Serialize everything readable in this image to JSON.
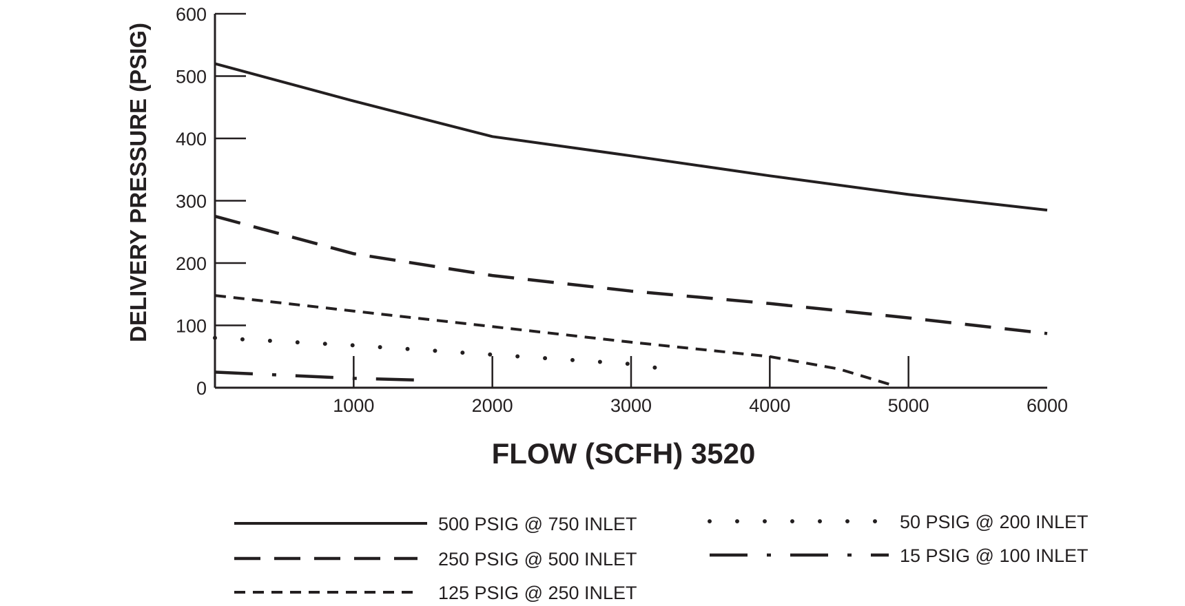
{
  "chart_data": {
    "type": "line",
    "title": "",
    "xlabel": "FLOW (SCFH) 3520",
    "ylabel": "DELIVERY PRESSURE (PSIG)",
    "xlim": [
      0,
      6000
    ],
    "ylim": [
      0,
      600
    ],
    "x_ticks": [
      1000,
      2000,
      3000,
      4000,
      5000,
      6000
    ],
    "y_ticks": [
      0,
      100,
      200,
      300,
      400,
      500,
      600
    ],
    "grid": false,
    "legend_position": "bottom",
    "line_color": "#231f20",
    "series": [
      {
        "name": "500 PSIG @ 750 INLET",
        "style": "solid",
        "x": [
          0,
          1000,
          2000,
          3000,
          4000,
          5000,
          6000
        ],
        "y": [
          520,
          460,
          403,
          372,
          340,
          310,
          285
        ]
      },
      {
        "name": "250 PSIG @ 500 INLET",
        "style": "long-dash",
        "x": [
          0,
          1000,
          2000,
          3000,
          4000,
          5000,
          6000
        ],
        "y": [
          275,
          215,
          180,
          155,
          135,
          112,
          87
        ]
      },
      {
        "name": "125 PSIG @ 250 INLET",
        "style": "short-dash",
        "x": [
          0,
          1000,
          2000,
          3000,
          4000,
          4500,
          4900
        ],
        "y": [
          148,
          123,
          98,
          73,
          50,
          30,
          3
        ]
      },
      {
        "name": "50 PSIG @ 200 INLET",
        "style": "dotted",
        "x": [
          0,
          1000,
          2000,
          3000,
          3300
        ],
        "y": [
          80,
          68,
          53,
          38,
          28
        ]
      },
      {
        "name": "15 PSIG @ 100 INLET",
        "style": "dash-dot",
        "x": [
          0,
          500,
          1000,
          1500
        ],
        "y": [
          25,
          20,
          15,
          12
        ]
      }
    ]
  }
}
